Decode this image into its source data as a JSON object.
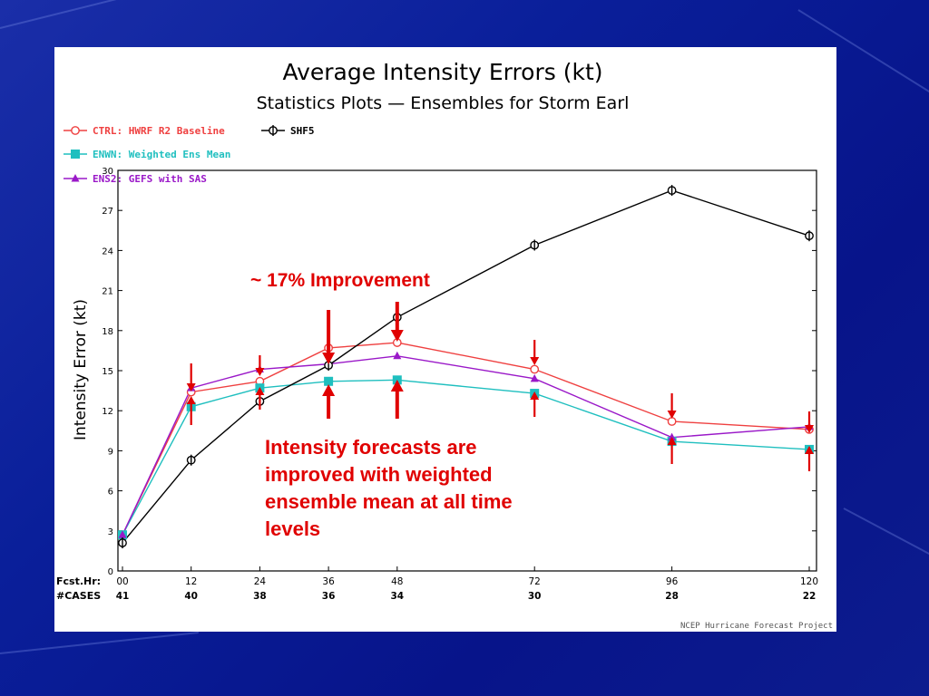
{
  "slide": {
    "improvement_note": "~ 17% Improvement",
    "body_text": "Intensity forecasts are improved with weighted ensemble mean at all time levels",
    "accent_color": "#e00000",
    "background_color": "#0a1f9a"
  },
  "chart_data": {
    "type": "line",
    "title": "Average Intensity Errors (kt)",
    "subtitle": "Statistics Plots — Ensembles for Storm Earl",
    "xlabel": "Fcst.Hr:",
    "ylabel": "Intensity Error (kt)",
    "cases_label": "#CASES",
    "x": [
      0,
      12,
      24,
      36,
      48,
      72,
      96,
      120
    ],
    "x_tick_labels": [
      "00",
      "12",
      "24",
      "36",
      "48",
      "72",
      "96",
      "120"
    ],
    "cases": [
      "41",
      "40",
      "38",
      "36",
      "34",
      "30",
      "28",
      "22"
    ],
    "ylim": [
      0,
      30
    ],
    "yticks": [
      0,
      3,
      6,
      9,
      12,
      15,
      18,
      21,
      24,
      27,
      30
    ],
    "grid": false,
    "legend_position": "top-left",
    "series": [
      {
        "name": "CTRL: HWRF R2 Baseline",
        "color": "#ef4040",
        "marker": "circle",
        "values": [
          2.7,
          13.4,
          14.2,
          16.7,
          17.1,
          15.1,
          11.2,
          10.6
        ]
      },
      {
        "name": "ENWN: Weighted Ens Mean",
        "color": "#1fbfbf",
        "marker": "square",
        "values": [
          2.7,
          12.3,
          13.7,
          14.2,
          14.3,
          13.3,
          9.7,
          9.1
        ]
      },
      {
        "name": "ENS2: GEFS with SAS",
        "color": "#9a18c8",
        "marker": "triangle",
        "values": [
          2.7,
          13.7,
          15.1,
          15.5,
          16.1,
          14.4,
          10.0,
          10.8
        ]
      },
      {
        "name": "SHF5",
        "color": "#000000",
        "marker": "theta",
        "values": [
          2.1,
          8.3,
          12.7,
          15.4,
          19.0,
          24.4,
          28.5,
          25.1
        ]
      }
    ],
    "footer": "NCEP Hurricane Forecast Project"
  }
}
